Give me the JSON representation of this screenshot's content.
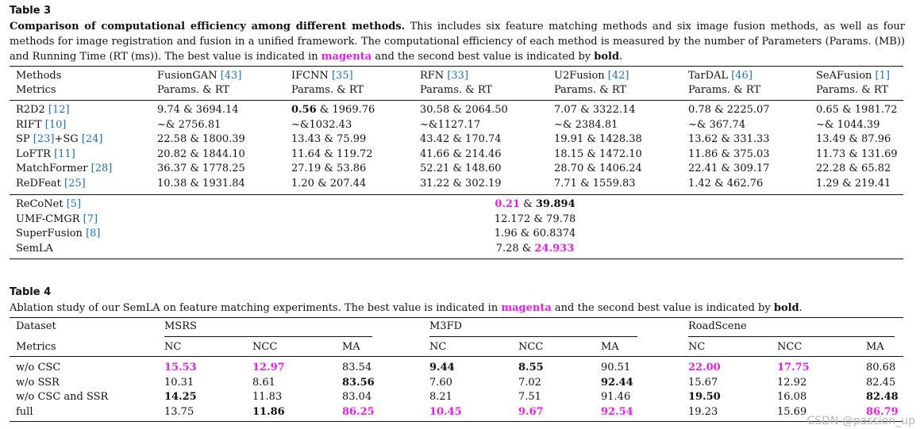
{
  "table3": {
    "label": "Table 3",
    "caption_title": "Comparison of computational efficiency among different methods.",
    "caption_body_1": " This includes six feature matching methods and six image fusion methods, as well as four methods for image registration and fusion in a unified framework. The computational efficiency of each method is measured by the number of Parameters (Params. (MB)) and Running Time (RT (ms)). The best value is indicated in ",
    "caption_magenta": "magenta",
    "caption_mid": " and the second best value is indicated by ",
    "caption_bold": "bold",
    "caption_end": ".",
    "header_row1": "Methods",
    "header_row2": "Metrics",
    "fusion_methods": [
      {
        "name": "FusionGAN ",
        "cite": "[43]",
        "metric": "Params. & RT"
      },
      {
        "name": "IFCNN ",
        "cite": "[35]",
        "metric": "Params. & RT"
      },
      {
        "name": "RFN ",
        "cite": "[33]",
        "metric": "Params. & RT"
      },
      {
        "name": "U2Fusion ",
        "cite": "[42]",
        "metric": "Params. & RT"
      },
      {
        "name": "TarDAL ",
        "cite": "[46]",
        "metric": "Params. & RT"
      },
      {
        "name": "SeAFusion ",
        "cite": "[1]",
        "metric": "Params. & RT"
      }
    ],
    "matching_rows": [
      {
        "name": "R2D2 ",
        "cite": "[12]",
        "cells": [
          [
            [
              "9.74 & 3694.14",
              ""
            ]
          ],
          [
            [
              "0.56",
              "bold"
            ],
            [
              " & 1969.76",
              ""
            ]
          ],
          [
            [
              "30.58 & 2064.50",
              ""
            ]
          ],
          [
            [
              "7.07 & 3322.14",
              ""
            ]
          ],
          [
            [
              "0.78 & 2225.07",
              ""
            ]
          ],
          [
            [
              "0.65 & 1981.72",
              ""
            ]
          ]
        ]
      },
      {
        "name": "RIFT ",
        "cite": "[10]",
        "cells": [
          [
            [
              "~& 2756.81",
              ""
            ]
          ],
          [
            [
              "~&1032.43",
              ""
            ]
          ],
          [
            [
              "~&1127.17",
              ""
            ]
          ],
          [
            [
              "~& 2384.81",
              ""
            ]
          ],
          [
            [
              "~& 367.74",
              ""
            ]
          ],
          [
            [
              "~& 1044.39",
              ""
            ]
          ]
        ]
      },
      {
        "name": "SP ",
        "cite": "[23]",
        "name2": "+SG ",
        "cite2": "[24]",
        "cells": [
          [
            [
              "22.58 & 1800.39",
              ""
            ]
          ],
          [
            [
              "13.43 & 75.99",
              ""
            ]
          ],
          [
            [
              "43.42 & 170.74",
              ""
            ]
          ],
          [
            [
              "19.91 & 1428.38",
              ""
            ]
          ],
          [
            [
              "13.62 & 331.33",
              ""
            ]
          ],
          [
            [
              "13.49 & 87.96",
              ""
            ]
          ]
        ]
      },
      {
        "name": "LoFTR ",
        "cite": "[11]",
        "cells": [
          [
            [
              "20.82 & 1844.10",
              ""
            ]
          ],
          [
            [
              "11.64 & 119.72",
              ""
            ]
          ],
          [
            [
              "41.66 & 214.46",
              ""
            ]
          ],
          [
            [
              "18.15 & 1472.10",
              ""
            ]
          ],
          [
            [
              "11.86 & 375.03",
              ""
            ]
          ],
          [
            [
              "11.73 & 131.69",
              ""
            ]
          ]
        ]
      },
      {
        "name": "MatchFormer ",
        "cite": "[28]",
        "cells": [
          [
            [
              "36.37 & 1778.25",
              ""
            ]
          ],
          [
            [
              "27.19 & 53.86",
              ""
            ]
          ],
          [
            [
              "52.21 & 148.60",
              ""
            ]
          ],
          [
            [
              "28.70 & 1406.24",
              ""
            ]
          ],
          [
            [
              "22.41 & 309.17",
              ""
            ]
          ],
          [
            [
              "22.28 & 65.82",
              ""
            ]
          ]
        ]
      },
      {
        "name": "ReDFeat ",
        "cite": "[25]",
        "cells": [
          [
            [
              "10.38 & 1931.84",
              ""
            ]
          ],
          [
            [
              "1.20 & 207.44",
              ""
            ]
          ],
          [
            [
              "31.22 & 302.19",
              ""
            ]
          ],
          [
            [
              "7.71 & 1559.83",
              ""
            ]
          ],
          [
            [
              "1.42 & 462.76",
              ""
            ]
          ],
          [
            [
              "1.29 & 219.41",
              ""
            ]
          ]
        ]
      }
    ],
    "unified_rows": [
      {
        "name": "ReCoNet ",
        "cite": "[5]",
        "value": [
          [
            "0.21",
            "mag"
          ],
          [
            " & ",
            ""
          ],
          [
            "39.894",
            "bold"
          ]
        ]
      },
      {
        "name": "UMF-CMGR ",
        "cite": "[7]",
        "value": [
          [
            "12.172 & 79.78",
            ""
          ]
        ]
      },
      {
        "name": "SuperFusion ",
        "cite": "[8]",
        "value": [
          [
            "1.96 & 60.8374",
            ""
          ]
        ]
      },
      {
        "name": "SemLA",
        "cite": "",
        "value": [
          [
            "7.28 & ",
            ""
          ],
          [
            "24.933",
            "mag"
          ]
        ]
      }
    ]
  },
  "table4": {
    "label": "Table 4",
    "caption_1": "Ablation study of our SemLA on feature matching experiments. The best value is indicated in ",
    "caption_magenta": "magenta",
    "caption_mid": " and the second best value is indicated by ",
    "caption_bold": "bold",
    "caption_end": ".",
    "header_dataset": "Dataset",
    "header_metrics": "Metrics",
    "datasets": [
      "MSRS",
      "M3FD",
      "RoadScene"
    ],
    "metrics": [
      "NC",
      "NCC",
      "MA"
    ],
    "rows": [
      {
        "name": "w/o CSC",
        "cells": [
          [
            "15.53",
            "mag"
          ],
          [
            "12.97",
            "mag"
          ],
          [
            "83.54",
            ""
          ],
          [
            "9.44",
            "bold"
          ],
          [
            "8.55",
            "bold"
          ],
          [
            "90.51",
            ""
          ],
          [
            "22.00",
            "mag"
          ],
          [
            "17.75",
            "mag"
          ],
          [
            "80.68",
            ""
          ]
        ]
      },
      {
        "name": "w/o SSR",
        "cells": [
          [
            "10.31",
            ""
          ],
          [
            "8.61",
            ""
          ],
          [
            "83.56",
            "bold"
          ],
          [
            "7.60",
            ""
          ],
          [
            "7.02",
            ""
          ],
          [
            "92.44",
            "bold"
          ],
          [
            "15.67",
            ""
          ],
          [
            "12.92",
            ""
          ],
          [
            "82.45",
            ""
          ]
        ]
      },
      {
        "name": "w/o CSC and SSR",
        "cells": [
          [
            "14.25",
            "bold"
          ],
          [
            "11.83",
            ""
          ],
          [
            "83.04",
            ""
          ],
          [
            "8.21",
            ""
          ],
          [
            "7.51",
            ""
          ],
          [
            "91.46",
            ""
          ],
          [
            "19.50",
            "bold"
          ],
          [
            "16.08",
            ""
          ],
          [
            "82.48",
            "bold"
          ]
        ]
      },
      {
        "name": "full",
        "cells": [
          [
            "13.75",
            ""
          ],
          [
            "11.86",
            "bold"
          ],
          [
            "86.25",
            "mag"
          ],
          [
            "10.45",
            "mag"
          ],
          [
            "9.67",
            "mag"
          ],
          [
            "92.54",
            "mag"
          ],
          [
            "19.23",
            ""
          ],
          [
            "15.69",
            ""
          ],
          [
            "86.79",
            "mag"
          ]
        ]
      }
    ]
  },
  "watermark": "CSDN @passion_up"
}
